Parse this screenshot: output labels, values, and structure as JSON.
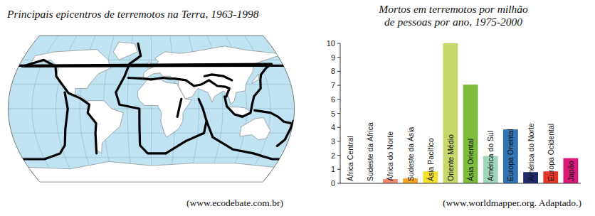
{
  "map": {
    "title": "Principais epicentros de terremotos na Terra, 1963-1998",
    "source": "(www.ecodebate.com.br)"
  },
  "chart_data": {
    "type": "bar",
    "title": "Mortos em terremotos por milhão\nde pessoas por ano, 1975-2000",
    "categories": [
      "África Central",
      "Sudeste da África",
      "África do Norte",
      "Sudeste da Ásia",
      "Ásia Pacífico",
      "Oriente Médio",
      "Ásia Oriental",
      "América do Sul",
      "Europa Oriental",
      "América do Norte",
      "Europa Ocidental",
      "Japão"
    ],
    "values": [
      0,
      0,
      0.3,
      0.35,
      0.85,
      10,
      7.05,
      1.95,
      3.85,
      0.8,
      0.85,
      1.8
    ],
    "colors": [
      "#cccccc",
      "#cccccc",
      "#f08a6c",
      "#f5a623",
      "#f2e22e",
      "#c5d96b",
      "#7dbd3e",
      "#9fd6bb",
      "#2f74b5",
      "#1f2a6b",
      "#e8372a",
      "#d81b7a"
    ],
    "ylim": [
      0,
      10
    ],
    "yticks": [
      0,
      1,
      2,
      3,
      4,
      5,
      6,
      7,
      8,
      9,
      10
    ],
    "grid": false,
    "annotations": [
      "(www.worldmapper.org. Adaptado.)"
    ]
  }
}
